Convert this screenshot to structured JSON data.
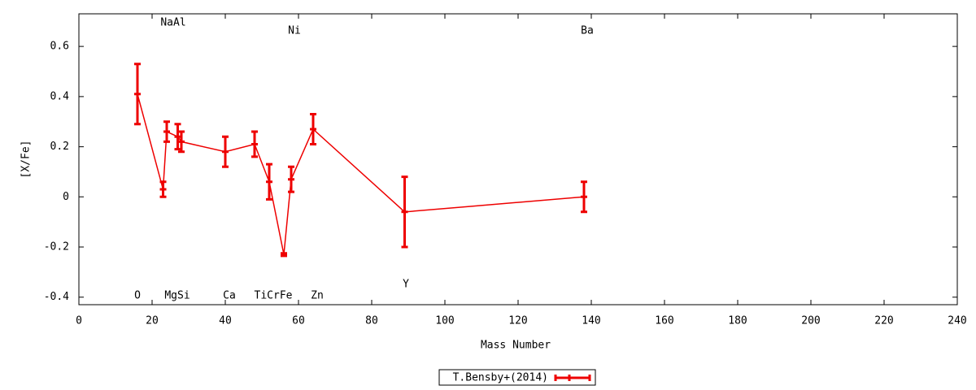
{
  "chart_data": {
    "type": "line",
    "x_label": "Mass Number",
    "y_label": "[X/Fe]",
    "x": [
      16,
      23,
      24,
      27,
      28,
      40,
      48,
      52,
      56,
      58,
      64,
      89,
      138
    ],
    "series": [
      {
        "name": "T.Bensby+(2014)",
        "color": "#ee0000",
        "values": [
          0.41,
          0.03,
          0.26,
          0.24,
          0.22,
          0.18,
          0.21,
          0.06,
          -0.23,
          0.07,
          0.27,
          -0.06,
          0.0
        ],
        "errors": [
          0.12,
          0.03,
          0.04,
          0.05,
          0.04,
          0.06,
          0.05,
          0.07,
          0.005,
          0.05,
          0.06,
          0.14,
          0.06
        ]
      }
    ],
    "annotations": [
      "O",
      "NaAl",
      "MgSi",
      "Ca",
      "TiCrFe",
      "Ni",
      "Zn",
      "Y",
      "Ba"
    ],
    "xlim": [
      0,
      240
    ],
    "xticks": [
      0,
      20,
      40,
      60,
      80,
      100,
      120,
      140,
      160,
      180,
      200,
      220,
      240
    ],
    "ylim": [
      -0.43,
      0.73
    ],
    "yticks": [
      -0.4,
      -0.2,
      0,
      0.2,
      0.4,
      0.6
    ],
    "grid": false,
    "legend": "bottom"
  }
}
